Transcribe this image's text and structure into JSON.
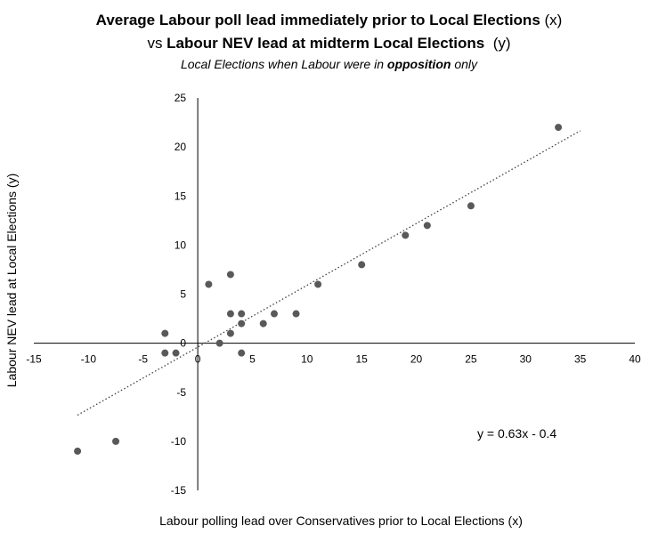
{
  "title": {
    "line1_bold": "Average Labour poll lead immediately prior to Local Elections",
    "line1_suffix": " (x)",
    "line2_prefix": "vs ",
    "line2_bold": "Labour NEV lead at midterm Local Elections",
    "line2_suffix": "  (y)",
    "subtitle_prefix": "Local Elections when Labour were in ",
    "subtitle_bold": "opposition",
    "subtitle_suffix": " only"
  },
  "chart_data": {
    "type": "scatter",
    "title": "Average Labour poll lead immediately prior to Local Elections (x) vs Labour NEV lead at midterm Local Elections (y)",
    "subtitle": "Local Elections when Labour were in opposition only",
    "xlabel": "Labour polling lead over Conservatives prior to Local Elections (x)",
    "ylabel": "Labour NEV lead at Local Elections (y)",
    "xlim": [
      -15,
      40
    ],
    "ylim": [
      -15,
      25
    ],
    "xticks": [
      -15,
      -10,
      -5,
      0,
      5,
      10,
      15,
      20,
      25,
      30,
      35,
      40
    ],
    "yticks": [
      -15,
      -10,
      -5,
      0,
      5,
      10,
      15,
      20,
      25
    ],
    "series": [
      {
        "name": "Local Elections",
        "points": [
          {
            "x": -11,
            "y": -11
          },
          {
            "x": -7.5,
            "y": -10
          },
          {
            "x": -3,
            "y": 1
          },
          {
            "x": -3,
            "y": -1
          },
          {
            "x": -2,
            "y": -1
          },
          {
            "x": 1,
            "y": 6
          },
          {
            "x": 2,
            "y": 0
          },
          {
            "x": 3,
            "y": 7
          },
          {
            "x": 3,
            "y": 3
          },
          {
            "x": 3,
            "y": 1
          },
          {
            "x": 4,
            "y": 3
          },
          {
            "x": 4,
            "y": 2
          },
          {
            "x": 4,
            "y": -1
          },
          {
            "x": 6,
            "y": 2
          },
          {
            "x": 7,
            "y": 3
          },
          {
            "x": 9,
            "y": 3
          },
          {
            "x": 11,
            "y": 6
          },
          {
            "x": 15,
            "y": 8
          },
          {
            "x": 19,
            "y": 11
          },
          {
            "x": 21,
            "y": 12
          },
          {
            "x": 25,
            "y": 14
          },
          {
            "x": 33,
            "y": 22
          }
        ]
      }
    ],
    "trendline": {
      "slope": 0.63,
      "intercept": -0.4,
      "x_range": [
        -11,
        35
      ],
      "label": "y = 0.63x - 0.4"
    },
    "colors": {
      "marker": "#595959",
      "axis": "#000000",
      "trendline": "#404040"
    }
  }
}
